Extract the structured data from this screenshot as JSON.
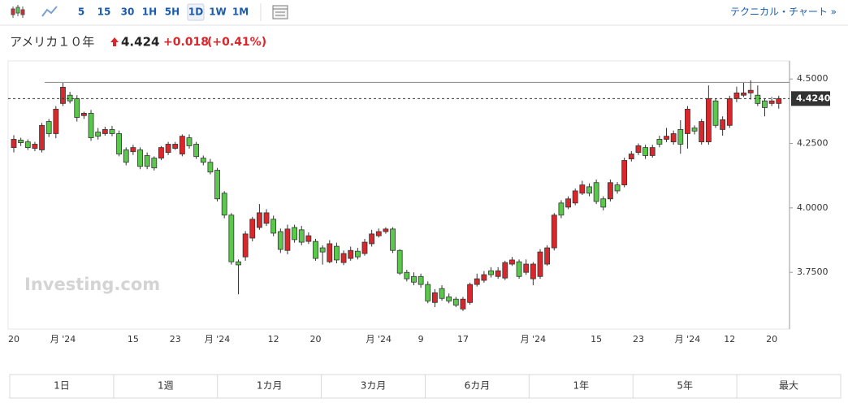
{
  "toolbar": {
    "intervals": [
      "5",
      "15",
      "30",
      "1H",
      "5H",
      "1D",
      "1W",
      "1M"
    ],
    "link": "テクニカル・チャート »"
  },
  "header": {
    "name": "アメリカ１０年",
    "price": "4.424",
    "change": "+0.018",
    "change_pct": "(+0.41%)"
  },
  "ranges": [
    "1日",
    "1週",
    "1カ月",
    "3カ月",
    "6カ月",
    "1年",
    "5年",
    "最大"
  ],
  "chart_data": {
    "type": "candlestick",
    "watermark": "Investing.com",
    "categories": [
      "20",
      null,
      null,
      null,
      null,
      null,
      null,
      "月 '24",
      null,
      null,
      null,
      null,
      null,
      null,
      null,
      null,
      null,
      "15",
      null,
      null,
      null,
      null,
      null,
      "23",
      null,
      null,
      null,
      null,
      null,
      "月 '24",
      null,
      null,
      null,
      null,
      null,
      null,
      null,
      "12",
      null,
      null,
      null,
      null,
      null,
      "20",
      null,
      null,
      null,
      null,
      null,
      null,
      null,
      null,
      "月 '24",
      null,
      null,
      null,
      null,
      null,
      "9",
      null,
      null,
      null,
      null,
      null,
      "17",
      null,
      null,
      null,
      null,
      null,
      null,
      null,
      null,
      null,
      "月 '24",
      null,
      null,
      null,
      null,
      null,
      null,
      null,
      null,
      "15",
      null,
      null,
      null,
      null,
      null,
      "23",
      null,
      null,
      null,
      null,
      null,
      null,
      "月 '24",
      null,
      null,
      null,
      null,
      null,
      "12",
      null,
      null,
      null,
      null,
      null,
      "20",
      null
    ],
    "open": [
      4.234,
      4.263,
      4.256,
      4.231,
      4.225,
      4.335,
      4.288,
      4.405,
      4.437,
      4.424,
      4.358,
      4.367,
      4.294,
      4.288,
      4.304,
      4.288,
      4.225,
      4.218,
      4.225,
      4.203,
      4.193,
      4.193,
      4.215,
      4.231,
      4.209,
      4.272,
      4.247,
      4.193,
      4.177,
      4.146,
      4.057,
      3.972,
      3.791,
      3.81,
      3.883,
      3.924,
      3.94,
      3.956,
      3.908,
      3.835,
      3.924,
      3.915,
      3.87,
      3.87,
      3.845,
      3.791,
      3.851,
      3.788,
      3.804,
      3.832,
      3.823,
      3.861,
      3.892,
      3.908,
      3.918,
      3.835,
      3.75,
      3.734,
      3.734,
      3.703,
      3.633,
      3.687,
      3.655,
      3.646,
      3.608,
      3.633,
      3.703,
      3.719,
      3.756,
      3.734,
      3.728,
      3.782,
      3.791,
      3.75,
      3.725,
      3.734,
      3.782,
      3.845,
      4.019,
      4.003,
      4.019,
      4.057,
      4.082,
      4.098,
      4.035,
      4.035,
      4.089,
      4.089,
      4.19,
      4.215,
      4.234,
      4.203,
      4.266,
      4.266,
      4.256,
      4.304,
      4.288,
      4.31,
      4.256,
      4.256,
      4.415,
      4.304,
      4.32,
      4.424,
      4.437,
      4.446,
      4.437,
      4.415,
      4.405,
      4.405
    ],
    "high": [
      4.282,
      4.272,
      4.266,
      4.256,
      4.33,
      4.345,
      4.395,
      4.485,
      4.45,
      4.437,
      4.373,
      4.38,
      4.31,
      4.315,
      4.318,
      4.3,
      4.235,
      4.245,
      4.235,
      4.215,
      4.2,
      4.24,
      4.256,
      4.256,
      4.285,
      4.285,
      4.256,
      4.203,
      4.19,
      4.155,
      4.065,
      3.98,
      3.8,
      3.91,
      3.965,
      4.015,
      3.995,
      3.97,
      3.92,
      3.935,
      3.935,
      3.93,
      3.905,
      3.88,
      3.855,
      3.875,
      3.865,
      3.835,
      3.85,
      3.845,
      3.88,
      3.915,
      3.92,
      3.925,
      3.925,
      3.84,
      3.76,
      3.75,
      3.745,
      3.715,
      3.685,
      3.7,
      3.668,
      3.655,
      3.655,
      3.71,
      3.745,
      3.755,
      3.77,
      3.77,
      3.795,
      3.81,
      3.8,
      3.8,
      3.79,
      3.84,
      3.855,
      3.98,
      4.03,
      4.045,
      4.075,
      4.105,
      4.095,
      4.11,
      4.045,
      4.11,
      4.1,
      4.195,
      4.22,
      4.25,
      4.245,
      4.245,
      4.28,
      4.31,
      4.3,
      4.34,
      4.395,
      4.32,
      4.345,
      4.475,
      4.425,
      4.355,
      4.435,
      4.47,
      4.485,
      4.495,
      4.475,
      4.425,
      4.43,
      4.435
    ],
    "low": [
      4.215,
      4.24,
      4.225,
      4.22,
      4.215,
      4.275,
      4.27,
      4.395,
      4.405,
      4.335,
      4.345,
      4.26,
      4.265,
      4.28,
      4.278,
      4.2,
      4.165,
      4.205,
      4.15,
      4.15,
      4.145,
      4.185,
      4.205,
      4.225,
      4.2,
      4.23,
      4.19,
      4.165,
      4.13,
      4.025,
      3.96,
      3.78,
      3.665,
      3.795,
      3.87,
      3.915,
      3.93,
      3.89,
      3.825,
      3.82,
      3.865,
      3.855,
      3.86,
      3.795,
      3.78,
      3.785,
      3.785,
      3.778,
      3.795,
      3.8,
      3.815,
      3.85,
      3.885,
      3.9,
      3.825,
      3.74,
      3.715,
      3.7,
      3.69,
      3.63,
      3.615,
      3.64,
      3.63,
      3.615,
      3.6,
      3.625,
      3.695,
      3.71,
      3.73,
      3.725,
      3.72,
      3.775,
      3.725,
      3.74,
      3.7,
      3.725,
      3.775,
      3.835,
      3.96,
      3.995,
      4.01,
      4.05,
      4.045,
      4.015,
      3.99,
      4.025,
      4.055,
      4.08,
      4.18,
      4.205,
      4.19,
      4.195,
      4.235,
      4.255,
      4.245,
      4.21,
      4.23,
      4.285,
      4.245,
      4.245,
      4.31,
      4.28,
      4.31,
      4.41,
      4.43,
      4.42,
      4.395,
      4.355,
      4.395,
      4.385
    ],
    "close": [
      4.266,
      4.253,
      4.234,
      4.247,
      4.32,
      4.288,
      4.383,
      4.468,
      4.415,
      4.351,
      4.367,
      4.272,
      4.278,
      4.304,
      4.288,
      4.209,
      4.177,
      4.234,
      4.161,
      4.161,
      4.155,
      4.234,
      4.247,
      4.247,
      4.278,
      4.241,
      4.199,
      4.177,
      4.139,
      4.035,
      3.972,
      3.791,
      3.779,
      3.899,
      3.956,
      3.981,
      3.981,
      3.902,
      3.839,
      3.918,
      3.877,
      3.867,
      3.892,
      3.804,
      3.829,
      3.861,
      3.798,
      3.823,
      3.835,
      3.81,
      3.867,
      3.899,
      3.908,
      3.918,
      3.835,
      3.747,
      3.725,
      3.712,
      3.703,
      3.639,
      3.671,
      3.649,
      3.639,
      3.623,
      3.646,
      3.703,
      3.725,
      3.741,
      3.741,
      3.756,
      3.788,
      3.798,
      3.734,
      3.782,
      3.782,
      3.829,
      3.845,
      3.972,
      3.972,
      4.035,
      4.066,
      4.089,
      4.057,
      4.025,
      4.003,
      4.098,
      4.066,
      4.184,
      4.209,
      4.241,
      4.203,
      4.234,
      4.247,
      4.278,
      4.288,
      4.247,
      4.383,
      4.298,
      4.335,
      4.424,
      4.32,
      4.342,
      4.424,
      4.446,
      4.446,
      4.456,
      4.405,
      4.389,
      4.415,
      4.424
    ],
    "up_color": "#d9272b",
    "down_color": "#5ac84a",
    "ylim": [
      3.53,
      4.57
    ],
    "yticks": [
      {
        "value": 3.75,
        "label": "3.7500"
      },
      {
        "value": 4.0,
        "label": "4.0000"
      },
      {
        "value": 4.25,
        "label": "4.2500"
      },
      {
        "value": 4.5,
        "label": "4.5000"
      }
    ],
    "reference_line": 4.487,
    "last_price": {
      "value": 4.424,
      "label": "4.4240"
    },
    "grid": false
  }
}
